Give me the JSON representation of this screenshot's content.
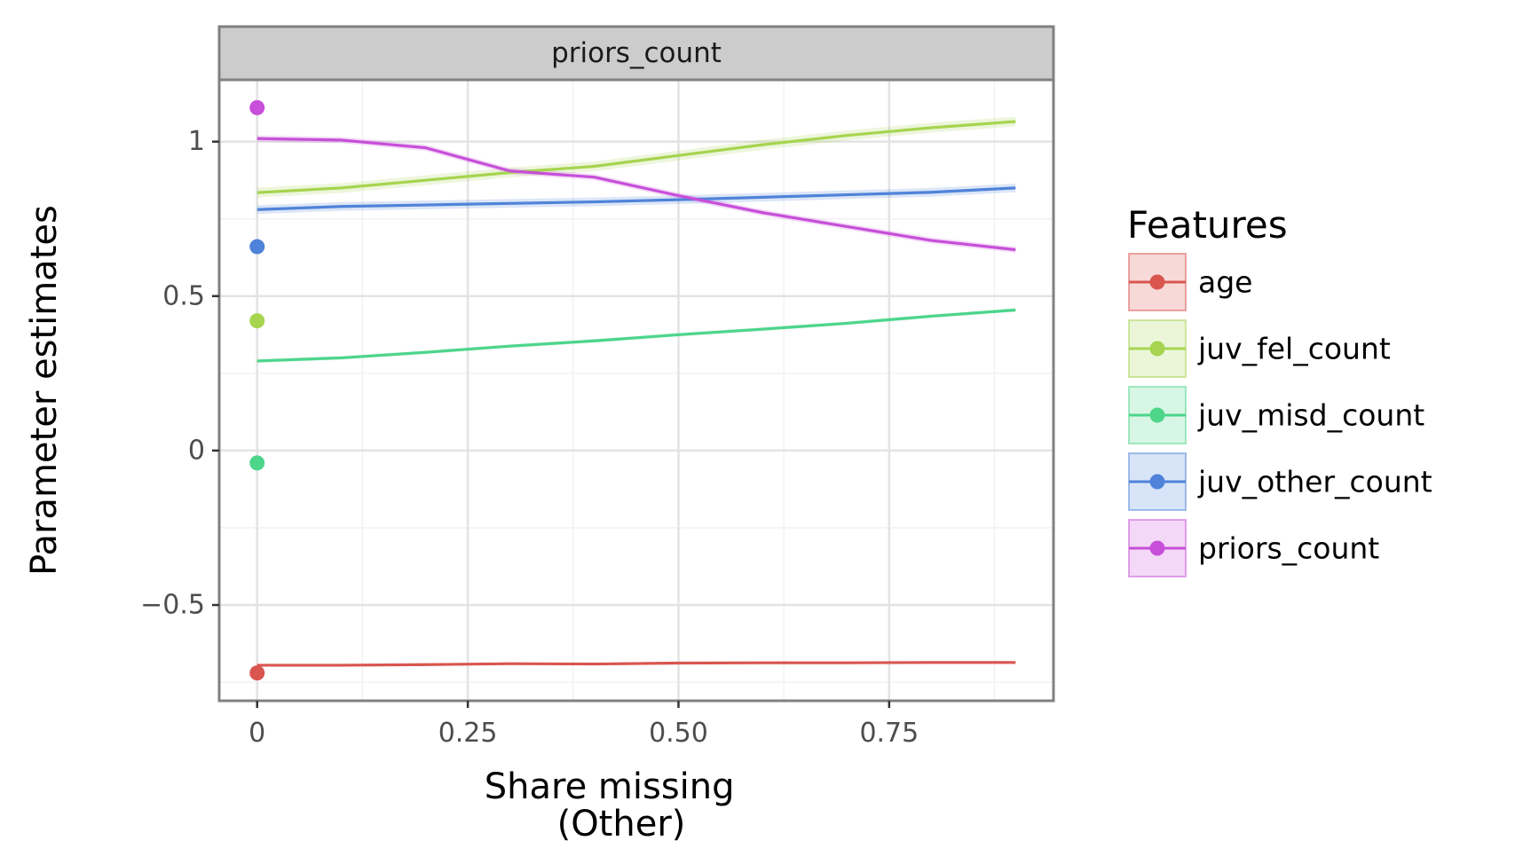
{
  "chart_data": {
    "type": "line",
    "facet_label": "priors_count",
    "xlabel": "Share missing\n(Other)",
    "ylabel": "Parameter estimates",
    "xlim": [
      -0.045,
      0.945
    ],
    "ylim": [
      -0.81,
      1.2
    ],
    "x_ticks": [
      0,
      0.25,
      0.5,
      0.75
    ],
    "x_tick_labels": [
      "0",
      "0.25",
      "0.50",
      "0.75"
    ],
    "y_ticks": [
      -0.5,
      0,
      0.5,
      1
    ],
    "y_tick_labels": [
      "−0.5",
      "0",
      "0.5",
      "1"
    ],
    "grid": true,
    "legend": {
      "title": "Features",
      "position": "right"
    },
    "x": [
      0,
      0.1,
      0.2,
      0.3,
      0.4,
      0.5,
      0.6,
      0.7,
      0.8,
      0.9
    ],
    "series": [
      {
        "name": "age",
        "color": "#d9564f",
        "values": [
          -0.695,
          -0.695,
          -0.693,
          -0.69,
          -0.691,
          -0.688,
          -0.687,
          -0.687,
          -0.686,
          -0.686
        ],
        "band": 0.004,
        "point": {
          "x": 0,
          "y": -0.72
        }
      },
      {
        "name": "juv_fel_count",
        "color": "#a6d44f",
        "values": [
          0.835,
          0.85,
          0.875,
          0.9,
          0.92,
          0.955,
          0.99,
          1.02,
          1.045,
          1.065
        ],
        "band": 0.016,
        "point": {
          "x": 0,
          "y": 0.42
        }
      },
      {
        "name": "juv_misd_count",
        "color": "#4dd58a",
        "values": [
          0.29,
          0.3,
          0.318,
          0.338,
          0.355,
          0.375,
          0.393,
          0.412,
          0.435,
          0.455
        ],
        "band": 0.006,
        "point": {
          "x": 0,
          "y": -0.04
        }
      },
      {
        "name": "juv_other_count",
        "color": "#4f83d9",
        "values": [
          0.78,
          0.79,
          0.795,
          0.8,
          0.805,
          0.812,
          0.82,
          0.828,
          0.836,
          0.85
        ],
        "band": 0.014,
        "point": {
          "x": 0,
          "y": 0.66
        }
      },
      {
        "name": "priors_count",
        "color": "#c74fd9",
        "values": [
          1.01,
          1.005,
          0.98,
          0.905,
          0.885,
          0.825,
          0.77,
          0.725,
          0.68,
          0.65
        ],
        "band": 0.01,
        "point": {
          "x": 0,
          "y": 1.11
        }
      }
    ]
  }
}
